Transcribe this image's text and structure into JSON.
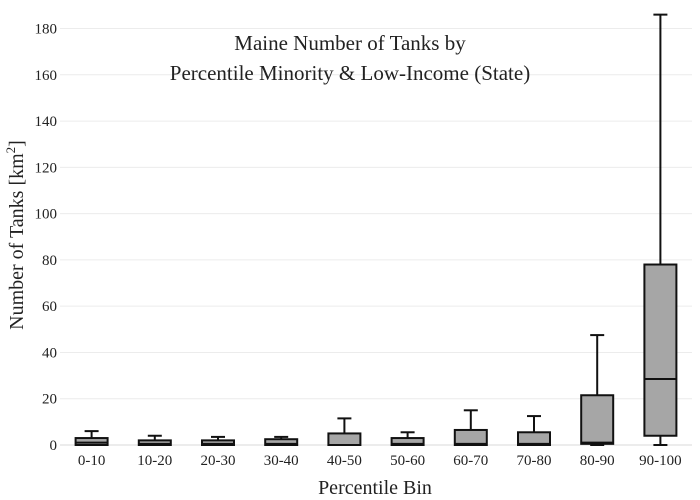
{
  "chart_data": {
    "type": "box",
    "title_lines": [
      "Maine Number of Tanks by",
      "Percentile Minority & Low-Income (State)"
    ],
    "xlabel": "Percentile Bin",
    "ylabel_main": "Number of Tanks  [km",
    "ylabel_sup": "2",
    "ylabel_end": "]",
    "ylim": [
      0,
      188
    ],
    "yticks": [
      0,
      20,
      40,
      60,
      80,
      100,
      120,
      140,
      160,
      180
    ],
    "grid": true,
    "box_color": "#a6a6a6",
    "categories": [
      "0-10",
      "10-20",
      "20-30",
      "30-40",
      "40-50",
      "50-60",
      "60-70",
      "70-80",
      "80-90",
      "90-100"
    ],
    "boxes": [
      {
        "min": 0,
        "q1": 0,
        "median": 1,
        "q3": 3,
        "max": 6
      },
      {
        "min": 0,
        "q1": 0,
        "median": 0.5,
        "q3": 2,
        "max": 4
      },
      {
        "min": 0,
        "q1": 0,
        "median": 0.5,
        "q3": 2,
        "max": 3.5
      },
      {
        "min": 0,
        "q1": 0,
        "median": 0.5,
        "q3": 2.5,
        "max": 3.5
      },
      {
        "min": 0,
        "q1": 0,
        "median": 0,
        "q3": 5,
        "max": 11.5
      },
      {
        "min": 0,
        "q1": 0,
        "median": 0.5,
        "q3": 3,
        "max": 5.5
      },
      {
        "min": 0,
        "q1": 0,
        "median": 0.5,
        "q3": 6.5,
        "max": 15
      },
      {
        "min": 0,
        "q1": 0,
        "median": 0.5,
        "q3": 5.5,
        "max": 12.5
      },
      {
        "min": 0,
        "q1": 0.5,
        "median": 1,
        "q3": 21.5,
        "max": 47.5
      },
      {
        "min": 0,
        "q1": 4,
        "median": 28.5,
        "q3": 78,
        "max": 186
      }
    ]
  }
}
